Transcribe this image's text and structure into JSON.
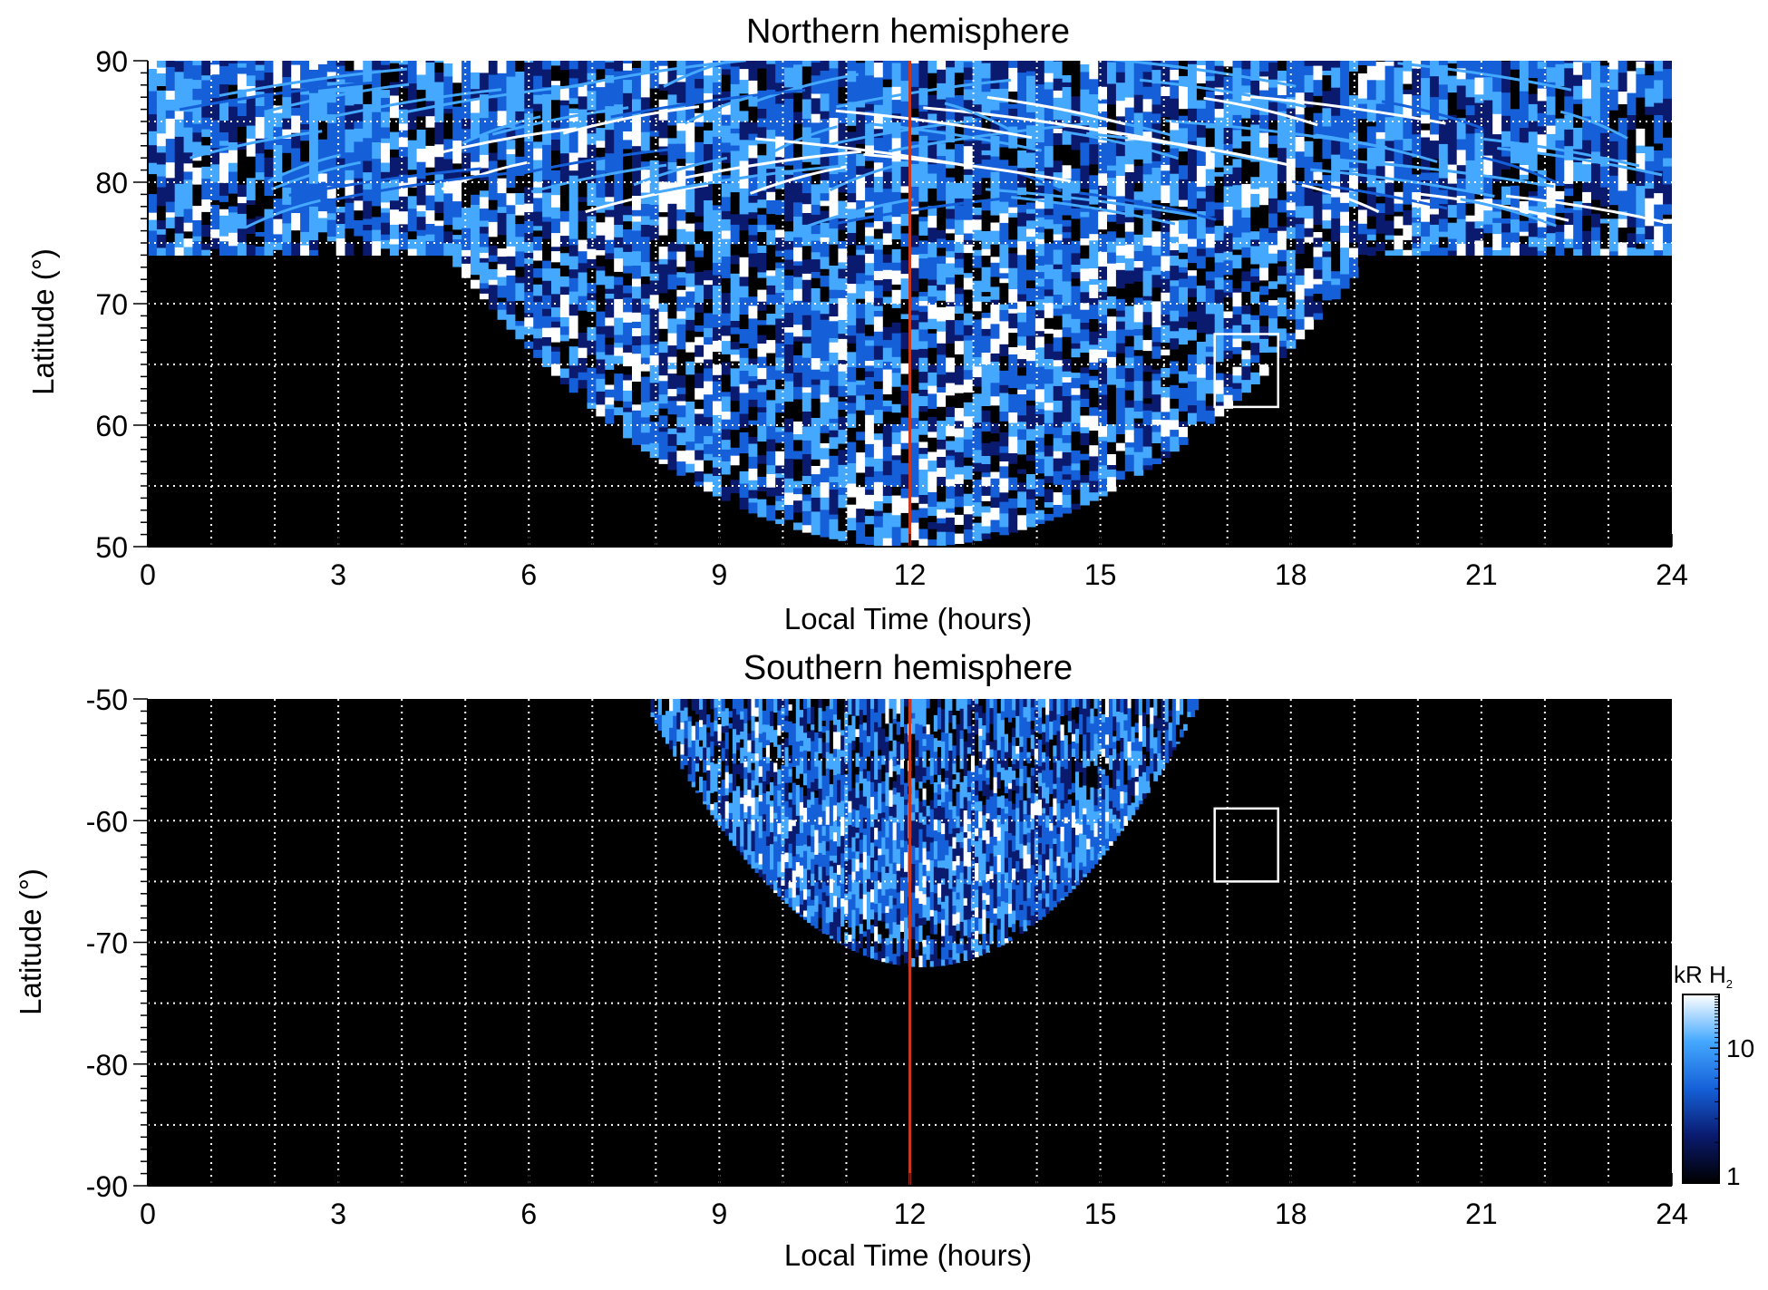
{
  "chart_data": [
    {
      "type": "heatmap",
      "title": "Northern hemisphere",
      "xlabel": "Local Time (hours)",
      "ylabel": "Latitude (°)",
      "xlim": [
        0,
        24
      ],
      "ylim": [
        50,
        90
      ],
      "xticks": [
        "0",
        "3",
        "6",
        "9",
        "12",
        "15",
        "18",
        "21",
        "24"
      ],
      "yticks": [
        "50",
        "60",
        "70",
        "80",
        "90"
      ],
      "grid": true,
      "reference_line": {
        "x": 12,
        "color": "#c8381e"
      },
      "highlight_box": {
        "x": [
          16.8,
          17.8
        ],
        "y": [
          61.5,
          67.5
        ]
      },
      "coverage": "polar-cap pattern: full longitude coverage above ~74° at 0–24 h; lower boundary reaching 50° between ~5 and ~19 h"
    },
    {
      "type": "heatmap",
      "title": "Southern hemisphere",
      "xlabel": "Local Time (hours)",
      "ylabel": "Latitude (°)",
      "xlim": [
        0,
        24
      ],
      "ylim": [
        -90,
        -50
      ],
      "xticks": [
        "0",
        "3",
        "6",
        "9",
        "12",
        "15",
        "18",
        "21",
        "24"
      ],
      "yticks": [
        "-90",
        "-80",
        "-70",
        "-60",
        "-50"
      ],
      "grid": true,
      "reference_line": {
        "x": 12,
        "color": "#c8381e"
      },
      "highlight_box": {
        "x": [
          16.8,
          17.8
        ],
        "y": [
          -65,
          -59
        ]
      },
      "coverage": "data only between ~8 and ~16.5 h, from -50° down to ~-72° near 12 h"
    }
  ],
  "colorbar": {
    "unit": "kR H",
    "unit_subscript": "2",
    "ticks": [
      "1",
      "10"
    ],
    "scale": "log",
    "range": [
      1,
      25
    ],
    "colors": [
      "#000000",
      "#0a1a6e",
      "#1560d8",
      "#44a8ff",
      "#ffffff"
    ]
  },
  "colors": {
    "background": "#000000",
    "grid": "#ffffff",
    "reference_line": "#c8381e",
    "box": "#ffffff"
  }
}
